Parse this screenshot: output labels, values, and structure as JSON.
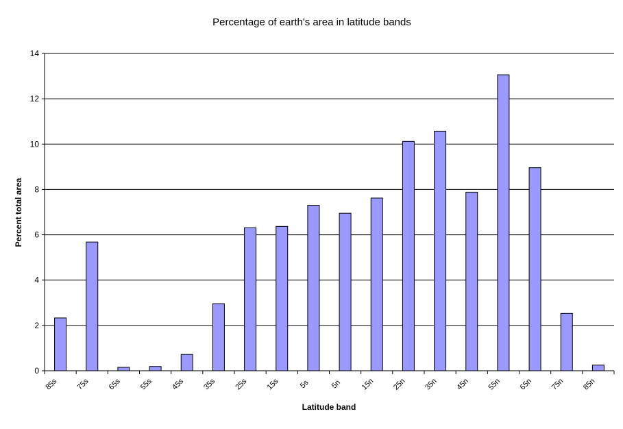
{
  "chart_data": {
    "type": "bar",
    "title": "Percentage of earth's area in latitude bands",
    "xlabel": "Latitude band",
    "ylabel": "Percent total area",
    "categories": [
      "85s",
      "75s",
      "65s",
      "55s",
      "45s",
      "35s",
      "25s",
      "15s",
      "5s",
      "5n",
      "15n",
      "25n",
      "35n",
      "45n",
      "55n",
      "65n",
      "75n",
      "85n"
    ],
    "values": [
      2.33,
      5.68,
      0.15,
      0.19,
      0.72,
      2.96,
      6.31,
      6.37,
      7.3,
      6.95,
      7.62,
      10.12,
      10.57,
      7.88,
      13.06,
      8.96,
      2.53,
      0.25
    ],
    "ylim": [
      0,
      14
    ],
    "yticks": [
      0,
      2,
      4,
      6,
      8,
      10,
      12,
      14
    ],
    "grid": true,
    "legend": "none",
    "bar_color": "#9999ff",
    "bar_stroke": "#000000"
  }
}
